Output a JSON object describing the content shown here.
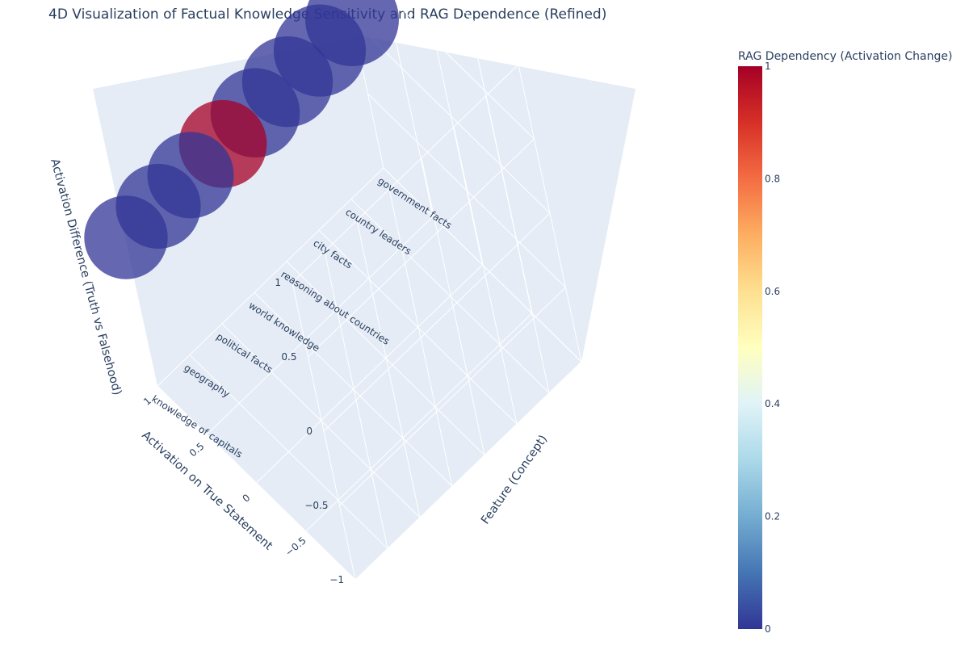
{
  "chart_data": {
    "type": "scatter3d",
    "title": "4D Visualization of Factual Knowledge Sensitivity and RAG Dependence (Refined)",
    "x_axis": {
      "label": "Activation on True Statement",
      "range": [
        -1,
        1
      ],
      "tick_labels": [
        "−0.5",
        "0",
        "0.5",
        "1"
      ],
      "tick_values": [
        -0.5,
        0,
        0.5,
        1
      ]
    },
    "y_axis": {
      "label": "Feature (Concept)",
      "categories": [
        "knowledge of capitals",
        "geography",
        "political facts",
        "world knowledge",
        "reasoning about countries",
        "city facts",
        "country leaders",
        "government facts"
      ]
    },
    "z_axis": {
      "label": "Activation Difference (Truth vs Falsehood)",
      "range": [
        -1,
        1
      ],
      "tick_labels": [
        "1",
        "0.5",
        "0",
        "−0.5",
        "−1"
      ],
      "tick_values": [
        1,
        0.5,
        0,
        -0.5,
        -1
      ]
    },
    "colorbar": {
      "title": "RAG Dependency (Activation Change)",
      "range": [
        0,
        1
      ],
      "tick_labels": [
        "1",
        "0.8",
        "0.6",
        "0.4",
        "0.2",
        "0"
      ],
      "tick_values": [
        1,
        0.8,
        0.6,
        0.4,
        0.2,
        0
      ],
      "colorscale": [
        "#313695",
        "#4575b4",
        "#74add1",
        "#abd9e9",
        "#e0f3f8",
        "#ffffbf",
        "#fee090",
        "#fdae61",
        "#f46d43",
        "#d73027",
        "#a50026"
      ]
    },
    "points": [
      {
        "feature": "knowledge of capitals",
        "x": 1,
        "z": 0,
        "rag": 0
      },
      {
        "feature": "geography",
        "x": 1,
        "z": 0,
        "rag": 0
      },
      {
        "feature": "political facts",
        "x": 1,
        "z": 0,
        "rag": 0
      },
      {
        "feature": "world knowledge",
        "x": 1,
        "z": 0,
        "rag": 1
      },
      {
        "feature": "reasoning about countries",
        "x": 1,
        "z": 0,
        "rag": 0
      },
      {
        "feature": "city facts",
        "x": 1,
        "z": 0,
        "rag": 0
      },
      {
        "feature": "country leaders",
        "x": 1,
        "z": 0,
        "rag": 0
      },
      {
        "feature": "government facts",
        "x": 1,
        "z": 0,
        "rag": 0
      }
    ],
    "marker_opacity": 0.75,
    "scene_background": "#e5ecf6",
    "grid_color": "#ffffff"
  }
}
